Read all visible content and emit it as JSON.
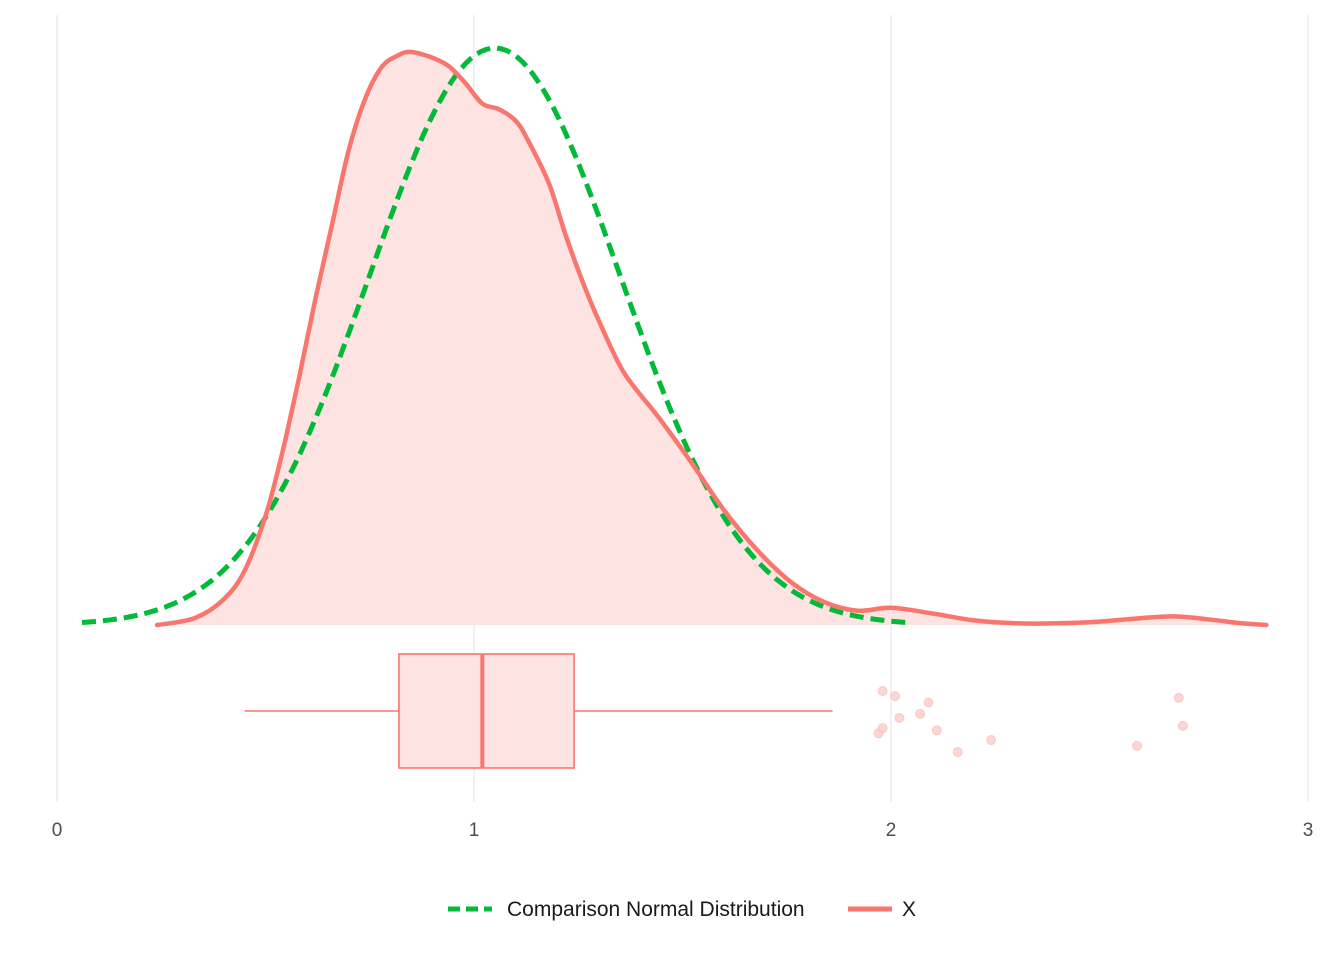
{
  "chart_data": {
    "type": "density",
    "title": "",
    "xlabel": "",
    "ylabel": "",
    "xlim": [
      0,
      3
    ],
    "x_ticks": [
      "0",
      "1",
      "2",
      "3"
    ],
    "grid": {
      "vertical_major": true,
      "horizontal": false
    },
    "legend_position": "bottom",
    "legend": [
      {
        "key": "normal",
        "label": "Comparison Normal Distribution",
        "style": "dashed",
        "color": "#00BA38"
      },
      {
        "key": "x",
        "label": "X",
        "style": "solid",
        "color": "#F8766D"
      }
    ],
    "colors": {
      "series": "#F8766D",
      "fill": "#FDE3E2",
      "normal": "#00BA38",
      "grid": "#EBEBEB",
      "outlier": "#FBD0CE"
    },
    "series": [
      {
        "name": "X",
        "kind": "density",
        "x": [
          0.24,
          0.33,
          0.4,
          0.45,
          0.5,
          0.54,
          0.58,
          0.62,
          0.66,
          0.7,
          0.74,
          0.78,
          0.82,
          0.84,
          0.86,
          0.88,
          0.9,
          0.94,
          0.98,
          1.02,
          1.06,
          1.1,
          1.13,
          1.18,
          1.22,
          1.26,
          1.3,
          1.36,
          1.44,
          1.52,
          1.6,
          1.68,
          1.76,
          1.84,
          1.92,
          2.0,
          2.1,
          2.2,
          2.3,
          2.4,
          2.5,
          2.6,
          2.68,
          2.76,
          2.84,
          2.9
        ],
        "y": [
          0.0,
          0.012,
          0.045,
          0.095,
          0.19,
          0.3,
          0.43,
          0.57,
          0.7,
          0.83,
          0.92,
          0.975,
          0.995,
          1.0,
          0.999,
          0.995,
          0.99,
          0.975,
          0.945,
          0.91,
          0.9,
          0.88,
          0.845,
          0.77,
          0.68,
          0.6,
          0.53,
          0.44,
          0.365,
          0.285,
          0.2,
          0.13,
          0.075,
          0.04,
          0.025,
          0.03,
          0.02,
          0.008,
          0.003,
          0.003,
          0.006,
          0.012,
          0.015,
          0.01,
          0.003,
          0.0
        ]
      },
      {
        "name": "Comparison Normal Distribution",
        "kind": "normal",
        "mean": 1.05,
        "sd": 0.3,
        "x_range": [
          0.06,
          2.05
        ],
        "peak_relative": 1.007
      }
    ],
    "boxplot": {
      "whisker_low": 0.45,
      "q1": 0.82,
      "median": 1.02,
      "q3": 1.24,
      "whisker_high": 1.86,
      "outliers": [
        {
          "x": 1.98,
          "jitter": -0.35
        },
        {
          "x": 2.01,
          "jitter": -0.26
        },
        {
          "x": 2.07,
          "jitter": 0.05
        },
        {
          "x": 2.09,
          "jitter": -0.15
        },
        {
          "x": 1.97,
          "jitter": 0.39
        },
        {
          "x": 1.98,
          "jitter": 0.3
        },
        {
          "x": 2.02,
          "jitter": 0.12
        },
        {
          "x": 2.11,
          "jitter": 0.34
        },
        {
          "x": 2.16,
          "jitter": 0.72
        },
        {
          "x": 2.24,
          "jitter": 0.51
        },
        {
          "x": 2.59,
          "jitter": 0.61
        },
        {
          "x": 2.69,
          "jitter": -0.23
        },
        {
          "x": 2.7,
          "jitter": 0.26
        }
      ]
    }
  }
}
